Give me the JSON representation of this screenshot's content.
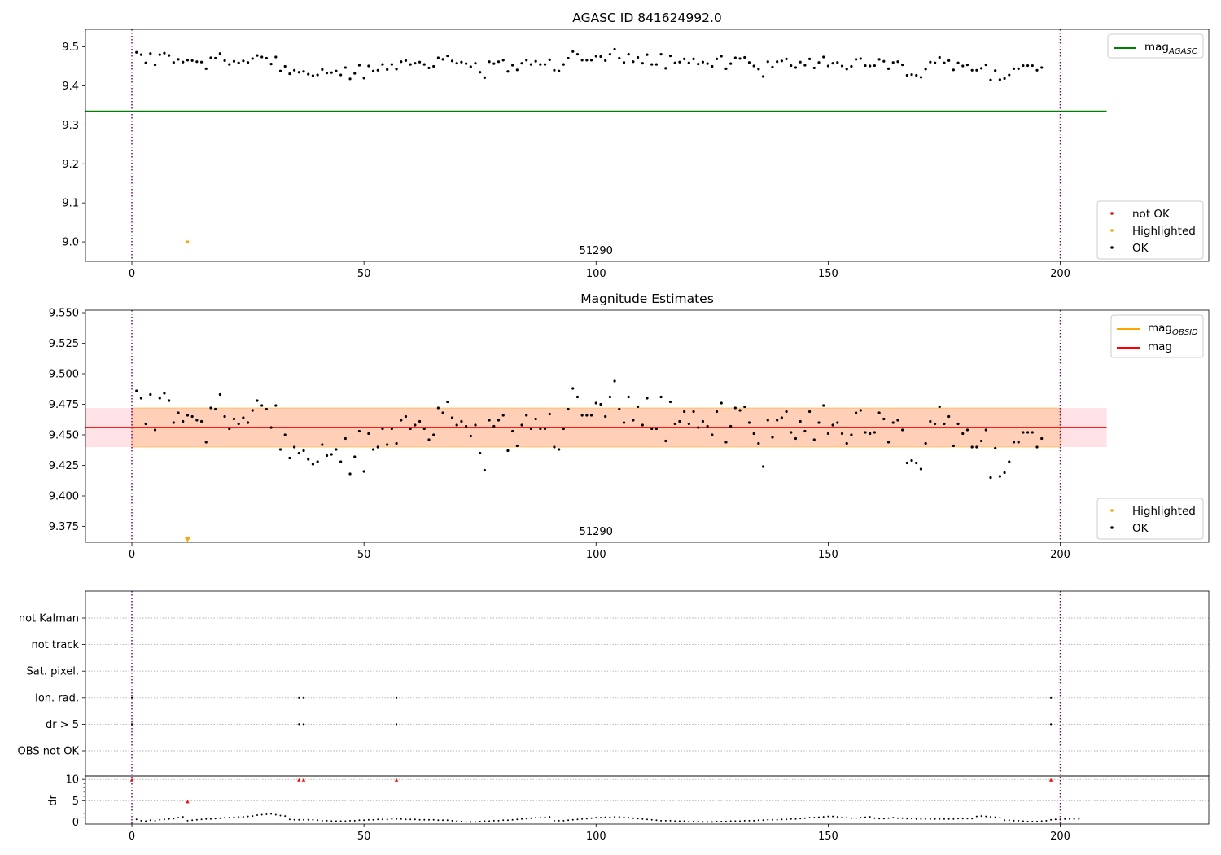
{
  "chart_data": [
    {
      "type": "scatter",
      "title": "AGASC ID 841624992.0",
      "ylim": [
        8.95,
        9.545
      ],
      "yticks": [
        "9.0",
        "9.1",
        "9.2",
        "9.3",
        "9.4",
        "9.5"
      ],
      "xlim": [
        -10,
        232
      ],
      "xticks": [
        "0",
        "50",
        "100",
        "150",
        "200"
      ],
      "obsid_annotation": "51290",
      "obs_boundaries": [
        0,
        200
      ],
      "mag_agasc": 9.335,
      "legend": {
        "lines": [
          {
            "main": "mag",
            "sub": "AGASC",
            "color": "#008000"
          }
        ],
        "markers": [
          {
            "label": "not OK",
            "color": "#ff0000"
          },
          {
            "label": "Highlighted",
            "color": "#ffa500"
          },
          {
            "label": "OK",
            "color": "#000000"
          }
        ]
      },
      "highlighted": [
        {
          "x": 12,
          "y": 9.0
        }
      ],
      "series": [
        {
          "y": [
            9.486,
            9.48,
            9.459,
            9.483,
            9.454,
            9.48,
            9.484,
            9.478,
            9.46,
            9.468,
            9.461,
            9.466,
            9.465,
            9.462,
            9.461,
            9.444,
            9.472,
            9.471,
            9.483,
            9.465,
            9.455,
            9.463,
            9.459,
            9.464,
            9.46,
            9.47,
            9.478,
            9.474,
            9.471,
            9.456,
            9.474,
            9.438,
            9.45,
            9.431,
            9.44,
            9.435,
            9.437,
            9.43,
            9.426,
            9.428,
            9.442,
            9.433,
            9.434,
            9.438,
            9.428,
            9.447,
            9.418,
            9.432,
            9.453,
            9.42,
            9.451,
            9.438,
            9.44,
            9.455,
            9.442,
            9.455,
            9.443,
            9.462,
            9.465,
            9.455,
            9.458,
            9.461,
            9.455,
            9.446,
            9.45,
            9.472,
            9.468,
            9.477,
            9.464,
            9.458,
            9.461,
            9.457,
            9.449,
            9.458,
            9.435,
            9.421,
            9.462,
            9.457,
            9.462,
            9.466,
            9.437,
            9.453,
            9.441,
            9.458,
            9.466,
            9.455,
            9.463,
            9.455,
            9.455,
            9.467,
            9.44,
            9.438,
            9.455,
            9.471,
            9.488,
            9.481,
            9.466,
            9.466,
            9.466,
            9.476,
            9.475,
            9.465,
            9.481,
            9.494,
            9.471,
            9.46,
            9.481,
            9.462,
            9.473,
            9.458,
            9.48,
            9.455,
            9.455,
            9.481,
            9.445,
            9.477,
            9.459,
            9.461,
            9.469,
            9.459,
            9.469,
            9.456,
            9.461,
            9.457,
            9.45,
            9.469,
            9.476,
            9.444,
            9.457,
            9.472,
            9.47,
            9.473,
            9.46,
            9.451,
            9.443,
            9.424,
            9.462,
            9.448,
            9.462,
            9.464,
            9.469,
            9.452,
            9.447,
            9.461,
            9.453,
            9.469,
            9.446,
            9.46,
            9.474,
            9.451,
            9.458,
            9.46,
            9.451,
            9.443,
            9.45,
            9.468,
            9.47,
            9.452,
            9.451,
            9.452,
            9.468,
            9.463,
            9.444,
            9.46,
            9.462,
            9.454,
            9.427,
            9.429,
            9.427,
            9.422,
            9.443,
            9.461,
            9.459,
            9.473,
            9.459,
            9.465,
            9.441,
            9.459,
            9.451,
            9.454,
            9.44,
            9.44,
            9.445,
            9.454,
            9.415,
            9.439,
            9.416,
            9.419,
            9.428,
            9.444,
            9.444,
            9.452,
            9.452,
            9.452,
            9.44,
            9.447
          ]
        }
      ]
    },
    {
      "type": "scatter",
      "title": "Magnitude Estimates",
      "ylim": [
        9.362,
        9.552
      ],
      "yticks": [
        "9.375",
        "9.400",
        "9.425",
        "9.450",
        "9.475",
        "9.500",
        "9.525",
        "9.550"
      ],
      "xlim": [
        -10,
        232
      ],
      "xticks": [
        "0",
        "50",
        "100",
        "150",
        "200"
      ],
      "obsid_annotation": "51290",
      "obs_boundaries": [
        0,
        200
      ],
      "mag": 9.456,
      "mag_band": [
        9.44,
        9.472
      ],
      "mag_obsid": 9.456,
      "legend": {
        "lines": [
          {
            "main": "mag",
            "sub": "OBSID",
            "color": "#ffa500"
          },
          {
            "main": "mag",
            "sub": "",
            "color": "#ff0000"
          }
        ],
        "markers": [
          {
            "label": "Highlighted",
            "color": "#ffa500"
          },
          {
            "label": "OK",
            "color": "#000000"
          }
        ]
      },
      "highlighted": [
        {
          "x": 12,
          "y": 9.364
        }
      ]
    },
    {
      "type": "scatter",
      "title": "",
      "xlim": [
        -10,
        232
      ],
      "xticks": [
        "0",
        "50",
        "100",
        "150",
        "200"
      ],
      "obs_boundaries": [
        0,
        200
      ],
      "flag_labels": [
        "not Kalman",
        "not track",
        "Sat. pixel.",
        "Ion. rad.",
        "dr > 5",
        "OBS not OK"
      ],
      "flag_events": {
        "Ion. rad.": [
          0,
          36,
          37,
          57,
          198
        ],
        "dr > 5": [
          0,
          36,
          37,
          57,
          198
        ]
      },
      "dr_ylabel": "dr",
      "dr_ylim": [
        -0.5,
        10.8
      ],
      "dr_yticks": [
        "0",
        "5",
        "10"
      ],
      "dr_outliers": [
        {
          "x": 0,
          "y": 9.8,
          "color": "#ff0000"
        },
        {
          "x": 36,
          "y": 9.8,
          "color": "#ff0000"
        },
        {
          "x": 37,
          "y": 9.8,
          "color": "#ff0000"
        },
        {
          "x": 57,
          "y": 9.8,
          "color": "#ff0000"
        },
        {
          "x": 198,
          "y": 9.8,
          "color": "#ff0000"
        },
        {
          "x": 12,
          "y": 4.7,
          "color": "#ff0000"
        }
      ],
      "dr_values": [
        0.6,
        0.3,
        0.2,
        0.4,
        0.3,
        0.5,
        0.6,
        0.7,
        0.8,
        1.0,
        1.2,
        0.3,
        0.4,
        0.5,
        0.6,
        0.7,
        0.7,
        0.8,
        0.9,
        1.0,
        1.0,
        1.1,
        1.2,
        1.2,
        1.3,
        1.4,
        1.6,
        1.7,
        1.8,
        1.9,
        1.7,
        1.5,
        1.4,
        0.6,
        0.5,
        0.5,
        0.5,
        0.5,
        0.5,
        0.4,
        0.3,
        0.3,
        0.2,
        0.2,
        0.2,
        0.2,
        0.3,
        0.3,
        0.4,
        0.4,
        0.5,
        0.5,
        0.6,
        0.6,
        0.6,
        0.7,
        0.7,
        0.7,
        0.6,
        0.6,
        0.6,
        0.5,
        0.5,
        0.5,
        0.5,
        0.4,
        0.4,
        0.4,
        0.3,
        0.2,
        0.1,
        0.0,
        0.0,
        0.0,
        0.1,
        0.2,
        0.2,
        0.3,
        0.3,
        0.4,
        0.4,
        0.5,
        0.6,
        0.7,
        0.8,
        0.9,
        1.0,
        1.0,
        1.1,
        1.2,
        0.3,
        0.3,
        0.3,
        0.4,
        0.5,
        0.6,
        0.7,
        0.8,
        0.9,
        1.0,
        1.0,
        1.1,
        1.1,
        1.2,
        1.2,
        1.1,
        1.0,
        0.9,
        0.8,
        0.7,
        0.6,
        0.5,
        0.4,
        0.3,
        0.3,
        0.3,
        0.2,
        0.2,
        0.2,
        0.1,
        0.1,
        0.1,
        0.0,
        0.0,
        0.0,
        0.1,
        0.1,
        0.1,
        0.2,
        0.2,
        0.2,
        0.3,
        0.3,
        0.3,
        0.4,
        0.4,
        0.5,
        0.5,
        0.5,
        0.6,
        0.6,
        0.7,
        0.7,
        0.8,
        0.9,
        1.0,
        1.0,
        1.1,
        1.2,
        1.3,
        1.3,
        1.2,
        1.1,
        1.0,
        0.9,
        0.9,
        1.0,
        1.1,
        1.2,
        0.9,
        0.8,
        0.8,
        0.9,
        1.0,
        0.9,
        0.9,
        0.8,
        0.8,
        0.7,
        0.7,
        0.7,
        0.7,
        0.7,
        0.7,
        0.7,
        0.7,
        0.7,
        0.8,
        0.8,
        0.8,
        0.8,
        1.3,
        1.4,
        1.3,
        1.2,
        1.1,
        1.0,
        0.4,
        0.4,
        0.3,
        0.3,
        0.2,
        0.1,
        0.1,
        0.1,
        0.2,
        0.3,
        0.5,
        0.6,
        0.6,
        0.7,
        0.7,
        0.7,
        0.7
      ]
    }
  ]
}
